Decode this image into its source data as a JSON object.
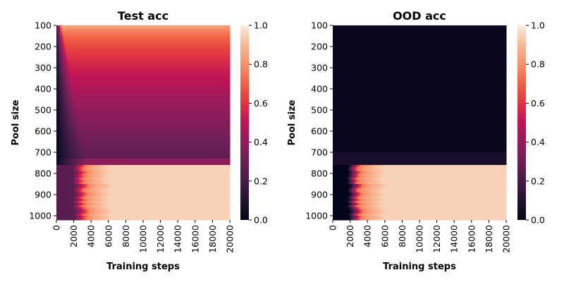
{
  "chart_data": [
    {
      "type": "heatmap",
      "title": "Test acc",
      "xlabel": "Training steps",
      "ylabel": "Pool size",
      "x_ticks": [
        0,
        2000,
        4000,
        6000,
        8000,
        10000,
        12000,
        14000,
        16000,
        18000,
        20000
      ],
      "y_ticks": [
        100,
        200,
        300,
        400,
        500,
        600,
        700,
        800,
        900,
        1000
      ],
      "xlim": [
        0,
        20000
      ],
      "ylim": [
        100,
        1020
      ],
      "colorbar": {
        "range": [
          0.0,
          1.0
        ],
        "ticks": [
          0.0,
          0.2,
          0.4,
          0.6,
          0.8,
          1.0
        ],
        "colormap": "rocket"
      },
      "value_model": {
        "description": "accuracy by pool size (rows) and training steps (columns)",
        "low_pool": {
          "pool_range": [
            100,
            760
          ],
          "start_value": 0.0,
          "plateau_at_pool_100": 0.9,
          "plateau_at_pool_760": 0.25,
          "rise_steps_at_pool_100": 600,
          "rise_steps_at_pool_760": 3500
        },
        "high_pool": {
          "pool_range": [
            760,
            1020
          ],
          "early_value": 0.25,
          "final_value": 0.95,
          "transition_steps": [
            2000,
            3200
          ]
        }
      }
    },
    {
      "type": "heatmap",
      "title": "OOD acc",
      "xlabel": "Training steps",
      "ylabel": "Pool size",
      "x_ticks": [
        0,
        2000,
        4000,
        6000,
        8000,
        10000,
        12000,
        14000,
        16000,
        18000,
        20000
      ],
      "y_ticks": [
        100,
        200,
        300,
        400,
        500,
        600,
        700,
        800,
        900,
        1000
      ],
      "xlim": [
        0,
        20000
      ],
      "ylim": [
        100,
        1020
      ],
      "colorbar": {
        "range": [
          0.0,
          1.0
        ],
        "ticks": [
          0.0,
          0.2,
          0.4,
          0.6,
          0.8,
          1.0
        ],
        "colormap": "rocket"
      },
      "value_model": {
        "description": "accuracy by pool size (rows) and training steps (columns)",
        "low_pool": {
          "pool_range": [
            100,
            760
          ],
          "value": 0.02
        },
        "high_pool": {
          "pool_range": [
            760,
            1020
          ],
          "early_value": 0.0,
          "final_value": 0.95,
          "transition_steps": [
            1800,
            3000
          ]
        }
      }
    }
  ]
}
